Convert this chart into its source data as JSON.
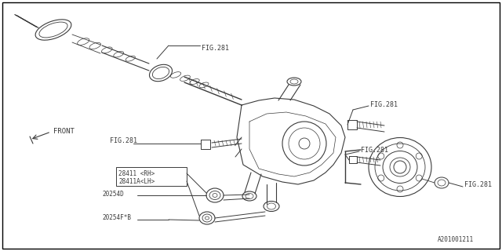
{
  "bg_color": "#ffffff",
  "border_color": "#555555",
  "line_color": "#444444",
  "text_color": "#333333",
  "fig_width": 6.4,
  "fig_height": 3.2,
  "dpi": 100,
  "labels": {
    "fig281_axle": "FIG.281",
    "fig281_bolt_left": "FIG.281",
    "fig281_right_top": "FIG.281",
    "fig281_right_mid": "FIG.281",
    "fig281_right_bot": "FIG.281",
    "part_28411_rh": "28411 <RH>",
    "part_28411a_lh": "28411A<LH>",
    "part_20254d": "20254D",
    "part_20254fb": "20254F*B",
    "front_label": "FRONT",
    "diagram_id": "A201001211"
  },
  "colors": {
    "line": "#3a3a3a",
    "thin": "#555555",
    "bg": "#ffffff",
    "border": "#000000"
  }
}
